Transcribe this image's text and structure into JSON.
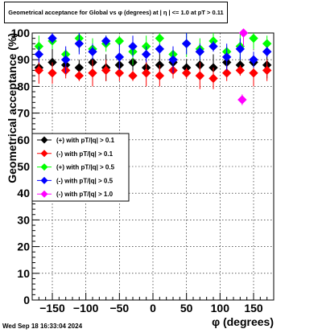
{
  "title": "Geometrical acceptance for Global vs φ (degrees) at | η | <= 1.0 at pT > 0.11",
  "footer": "Wed Sep 18 16:33:04 2024",
  "chart_data": {
    "type": "scatter",
    "title": "Geometrical acceptance for Global vs φ (degrees) at | η | <= 1.0 at pT > 0.11",
    "xlabel": "φ (degrees)",
    "ylabel": "Geometrical acceptance (%)",
    "xlim": [
      -180,
      180
    ],
    "ylim": [
      0,
      100
    ],
    "xticks": [
      -150,
      -100,
      -50,
      0,
      50,
      100,
      150
    ],
    "yticks": [
      0,
      10,
      20,
      30,
      40,
      50,
      60,
      70,
      80,
      90,
      100
    ],
    "grid": true,
    "legend_position": "left-middle",
    "series": [
      {
        "name": "(+) with pT/|q| > 0.1",
        "color": "#000000",
        "x": [
          -170,
          -150,
          -130,
          -110,
          -90,
          -70,
          -50,
          -30,
          -10,
          10,
          30,
          50,
          70,
          90,
          110,
          130,
          150,
          170
        ],
        "y": [
          87,
          89,
          88,
          87,
          89,
          87,
          88,
          89,
          87,
          88,
          89,
          87,
          88,
          87,
          89,
          88,
          89,
          88
        ]
      },
      {
        "name": "(-) with pT/|q| > 0.1",
        "color": "#ff0000",
        "x": [
          -170,
          -150,
          -130,
          -110,
          -90,
          -70,
          -50,
          -30,
          -10,
          10,
          30,
          50,
          70,
          90,
          110,
          130,
          150,
          170
        ],
        "y": [
          86,
          85,
          86,
          84,
          85,
          86,
          85,
          84,
          85,
          84,
          86,
          85,
          84,
          83,
          85,
          86,
          85,
          86
        ]
      },
      {
        "name": "(+) with pT/|q| > 0.5",
        "color": "#00ff00",
        "x": [
          -170,
          -150,
          -130,
          -110,
          -90,
          -70,
          -50,
          -30,
          -10,
          10,
          30,
          50,
          70,
          90,
          110,
          130,
          150,
          170
        ],
        "y": [
          95,
          97,
          92,
          98,
          94,
          96,
          97,
          93,
          95,
          98,
          92,
          96,
          94,
          97,
          93,
          95,
          98,
          96
        ]
      },
      {
        "name": "(-) with pT/|q| > 0.5",
        "color": "#0000ff",
        "x": [
          -170,
          -150,
          -130,
          -110,
          -90,
          -70,
          -50,
          -30,
          -10,
          10,
          30,
          50,
          70,
          90,
          110,
          130,
          150,
          170
        ],
        "y": [
          92,
          98,
          90,
          96,
          93,
          97,
          91,
          95,
          92,
          94,
          90,
          96,
          93,
          95,
          91,
          94,
          90,
          93
        ]
      },
      {
        "name": "(-) with pT/|q| > 1.0",
        "color": "#ff00ff",
        "x": [
          133,
          135
        ],
        "y": [
          75,
          100
        ]
      }
    ]
  }
}
